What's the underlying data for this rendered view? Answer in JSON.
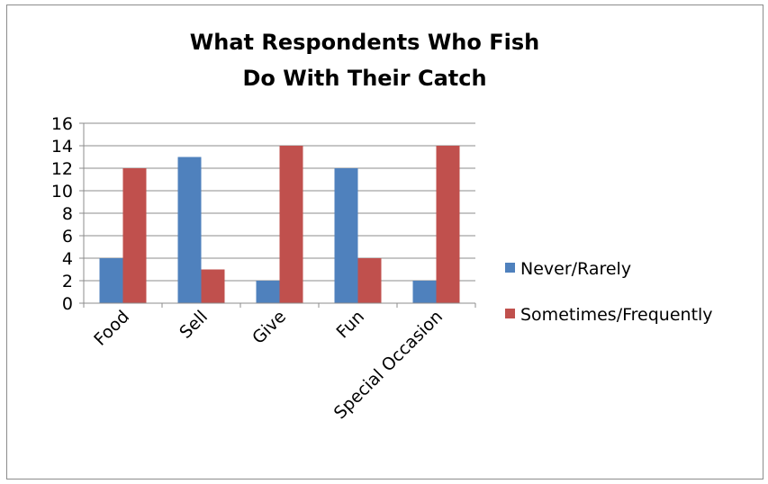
{
  "chart_data": {
    "type": "bar",
    "title": [
      "What Respondents Who Fish",
      "Do With Their Catch"
    ],
    "categories": [
      "Food",
      "Sell",
      "Give",
      "Fun",
      "Special Occasion"
    ],
    "series": [
      {
        "name": "Never/Rarely",
        "color": "#4f81bd",
        "values": [
          4,
          13,
          2,
          12,
          2
        ]
      },
      {
        "name": "Sometimes/Frequently",
        "color": "#c0504d",
        "values": [
          12,
          3,
          14,
          4,
          14
        ]
      }
    ],
    "ylim": [
      0,
      16
    ],
    "yticks": [
      "0",
      "2",
      "4",
      "6",
      "8",
      "10",
      "12",
      "14",
      "16"
    ],
    "grid": true,
    "legend_position": "right"
  }
}
